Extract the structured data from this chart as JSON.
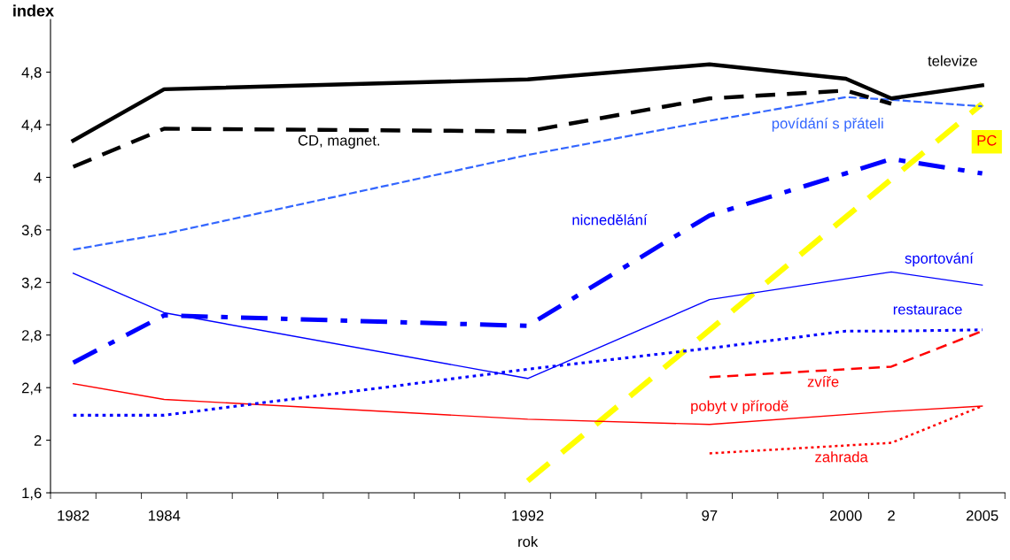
{
  "chart_data": {
    "type": "line",
    "ylabel": "index",
    "xlabel": "rok",
    "categories": [
      "1982",
      null,
      "1984",
      null,
      null,
      null,
      null,
      null,
      null,
      null,
      "1992",
      null,
      null,
      null,
      "97",
      null,
      null,
      "2000",
      "2",
      null,
      "2005"
    ],
    "ylim": [
      1.6,
      5.2
    ],
    "yticks": [
      {
        "value": 1.6,
        "label": "1,6"
      },
      2,
      {
        "value": 2.4,
        "label": "2,4"
      },
      {
        "value": 2.8,
        "label": "2,8"
      },
      {
        "value": 3.2,
        "label": "3,2"
      },
      {
        "value": 3.6,
        "label": "3,6"
      },
      4,
      {
        "value": 4.4,
        "label": "4,4"
      },
      {
        "value": 4.8,
        "label": "4,8"
      }
    ],
    "grid": false,
    "legend": false,
    "marker": "none",
    "series": [
      {
        "name": "televize",
        "color": "#000000",
        "line_style": "solid",
        "values": [
          4.28,
          null,
          4.67,
          null,
          null,
          null,
          null,
          null,
          null,
          null,
          4.745,
          null,
          null,
          null,
          4.86,
          null,
          null,
          4.75,
          4.6,
          null,
          4.7
        ]
      },
      {
        "name": "CD, magnet.",
        "color": "#000000",
        "line_style": "dashed",
        "values": [
          4.08,
          null,
          4.37,
          null,
          null,
          null,
          null,
          null,
          null,
          null,
          4.35,
          null,
          null,
          null,
          4.6,
          null,
          null,
          4.66,
          4.56,
          null,
          null
        ]
      },
      {
        "name": "povídání s přáteli",
        "color": "#3366ff",
        "line_style": "dashed",
        "values": [
          3.45,
          null,
          3.57,
          null,
          null,
          null,
          null,
          null,
          null,
          null,
          4.17,
          null,
          null,
          null,
          4.43,
          null,
          null,
          4.61,
          4.59,
          null,
          4.54
        ]
      },
      {
        "name": "nicnedělání",
        "color": "#0000ff",
        "line_style": "dashdot",
        "values": [
          2.59,
          null,
          2.95,
          null,
          null,
          null,
          null,
          null,
          null,
          null,
          2.87,
          null,
          null,
          null,
          3.71,
          null,
          null,
          4.03,
          4.14,
          null,
          4.03
        ]
      },
      {
        "name": "sportování",
        "color": "#0000ff",
        "line_style": "solid",
        "values": [
          3.27,
          null,
          2.97,
          null,
          null,
          null,
          null,
          null,
          null,
          null,
          2.47,
          null,
          null,
          null,
          3.07,
          null,
          null,
          null,
          3.28,
          null,
          3.18
        ]
      },
      {
        "name": "restaurace",
        "color": "#0000ff",
        "line_style": "dotted",
        "values": [
          2.19,
          null,
          2.19,
          null,
          null,
          null,
          null,
          null,
          null,
          null,
          2.54,
          null,
          null,
          null,
          2.7,
          null,
          null,
          2.83,
          2.83,
          null,
          2.84
        ]
      },
      {
        "name": "zvíře",
        "color": "#ff0000",
        "line_style": "dashed",
        "values": [
          null,
          null,
          null,
          null,
          null,
          null,
          null,
          null,
          null,
          null,
          null,
          null,
          null,
          null,
          2.48,
          null,
          null,
          null,
          2.56,
          null,
          2.83
        ]
      },
      {
        "name": "pobyt v přírodě",
        "color": "#ff0000",
        "line_style": "solid",
        "values": [
          2.43,
          null,
          2.31,
          null,
          null,
          null,
          null,
          null,
          null,
          null,
          2.16,
          null,
          null,
          null,
          2.12,
          null,
          null,
          null,
          2.22,
          null,
          2.26
        ]
      },
      {
        "name": "zahrada",
        "color": "#ff0000",
        "line_style": "dotted",
        "values": [
          null,
          null,
          null,
          null,
          null,
          null,
          null,
          null,
          null,
          null,
          null,
          null,
          null,
          null,
          1.9,
          null,
          null,
          null,
          1.98,
          null,
          2.26
        ]
      },
      {
        "name": "PC",
        "color": "#ffff00",
        "line_style": "dashed",
        "values": [
          null,
          null,
          null,
          null,
          null,
          null,
          null,
          null,
          null,
          null,
          1.69,
          null,
          null,
          null,
          null,
          null,
          null,
          null,
          null,
          null,
          4.56
        ]
      }
    ]
  }
}
